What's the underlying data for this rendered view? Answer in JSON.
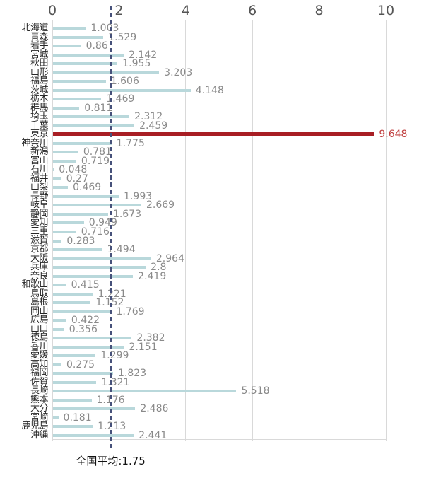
{
  "chart_data": {
    "type": "bar",
    "orientation": "horizontal",
    "title": "",
    "xlabel": "",
    "ylabel": "",
    "xlim": [
      0,
      10
    ],
    "x_ticks": [
      0,
      2,
      4,
      6,
      8,
      10
    ],
    "grid": "vertical",
    "categories": [
      "北海道",
      "青森",
      "岩手",
      "宮城",
      "秋田",
      "山形",
      "福島",
      "茨城",
      "栃木",
      "群馬",
      "埼玉",
      "千葉",
      "東京",
      "神奈川",
      "新潟",
      "富山",
      "石川",
      "福井",
      "山梨",
      "長野",
      "岐阜",
      "静岡",
      "愛知",
      "三重",
      "滋賀",
      "京都",
      "大阪",
      "兵庫",
      "奈良",
      "和歌山",
      "鳥取",
      "島根",
      "岡山",
      "広島",
      "山口",
      "徳島",
      "香川",
      "愛媛",
      "高知",
      "福岡",
      "佐賀",
      "長崎",
      "熊本",
      "大分",
      "宮崎",
      "鹿児島",
      "沖縄"
    ],
    "values": [
      1.003,
      1.529,
      0.86,
      2.142,
      1.955,
      3.203,
      1.606,
      4.148,
      1.469,
      0.811,
      2.312,
      2.459,
      9.648,
      1.775,
      0.781,
      0.719,
      0.048,
      0.27,
      0.469,
      1.993,
      2.669,
      1.673,
      0.949,
      0.716,
      0.283,
      1.494,
      2.964,
      2.8,
      2.419,
      0.415,
      1.221,
      1.152,
      1.769,
      0.422,
      0.356,
      2.382,
      2.151,
      1.299,
      0.275,
      1.823,
      1.321,
      5.518,
      1.176,
      2.486,
      0.181,
      1.213,
      2.441
    ],
    "highlight_index": 12,
    "highlight_category": "東京",
    "highlight_value": 9.648,
    "average": {
      "value": 1.75,
      "label": "全国平均:1.75"
    },
    "colors": {
      "bar": "#b9d8db",
      "highlight_bar": "#a81e24",
      "highlight_value_label": "#c04040",
      "value_label": "#8a8a8a",
      "tick_label": "#555555",
      "category_label": "#262626",
      "gridline": "#d9d9d9",
      "average_line": "#46517a",
      "average_text": "#111111",
      "background": "#ffffff"
    }
  }
}
